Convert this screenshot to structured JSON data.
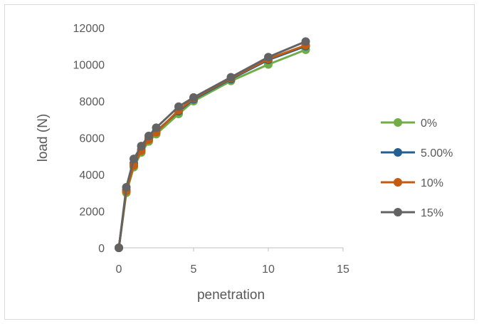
{
  "chart_data": {
    "type": "line",
    "xlabel": "penetration",
    "ylabel": "load (N)",
    "xlim": [
      0,
      15
    ],
    "ylim": [
      0,
      12000
    ],
    "xticks": [
      0,
      5,
      10,
      15
    ],
    "yticks": [
      0,
      2000,
      4000,
      6000,
      8000,
      10000,
      12000
    ],
    "grid": false,
    "legend_position": "right",
    "series": [
      {
        "name": "0%",
        "color": "#70ad47",
        "x": [
          0,
          0.5,
          1,
          1.5,
          2,
          2.5,
          4,
          5,
          7.5,
          10,
          12.5
        ],
        "y": [
          0,
          3000,
          4400,
          5200,
          5800,
          6200,
          7300,
          8000,
          9100,
          10000,
          10800
        ]
      },
      {
        "name": "5.00%",
        "color": "#255e91",
        "x": [
          0,
          0.5,
          1,
          1.5,
          2,
          2.5,
          4,
          5,
          7.5,
          10,
          12.5
        ],
        "y": [
          0,
          3150,
          4600,
          5350,
          5950,
          6350,
          7450,
          8100,
          9200,
          10250,
          11000
        ]
      },
      {
        "name": "10%",
        "color": "#c55a11",
        "x": [
          0,
          0.5,
          1,
          1.5,
          2,
          2.5,
          4,
          5,
          7.5,
          10,
          12.5
        ],
        "y": [
          0,
          3100,
          4500,
          5300,
          5900,
          6300,
          7500,
          8150,
          9250,
          10300,
          11050
        ]
      },
      {
        "name": "15%",
        "color": "#636363",
        "x": [
          0,
          0.5,
          1,
          1.5,
          2,
          2.5,
          4,
          5,
          7.5,
          10,
          12.5
        ],
        "y": [
          0,
          3300,
          4850,
          5550,
          6100,
          6550,
          7700,
          8200,
          9300,
          10400,
          11250
        ]
      }
    ]
  }
}
